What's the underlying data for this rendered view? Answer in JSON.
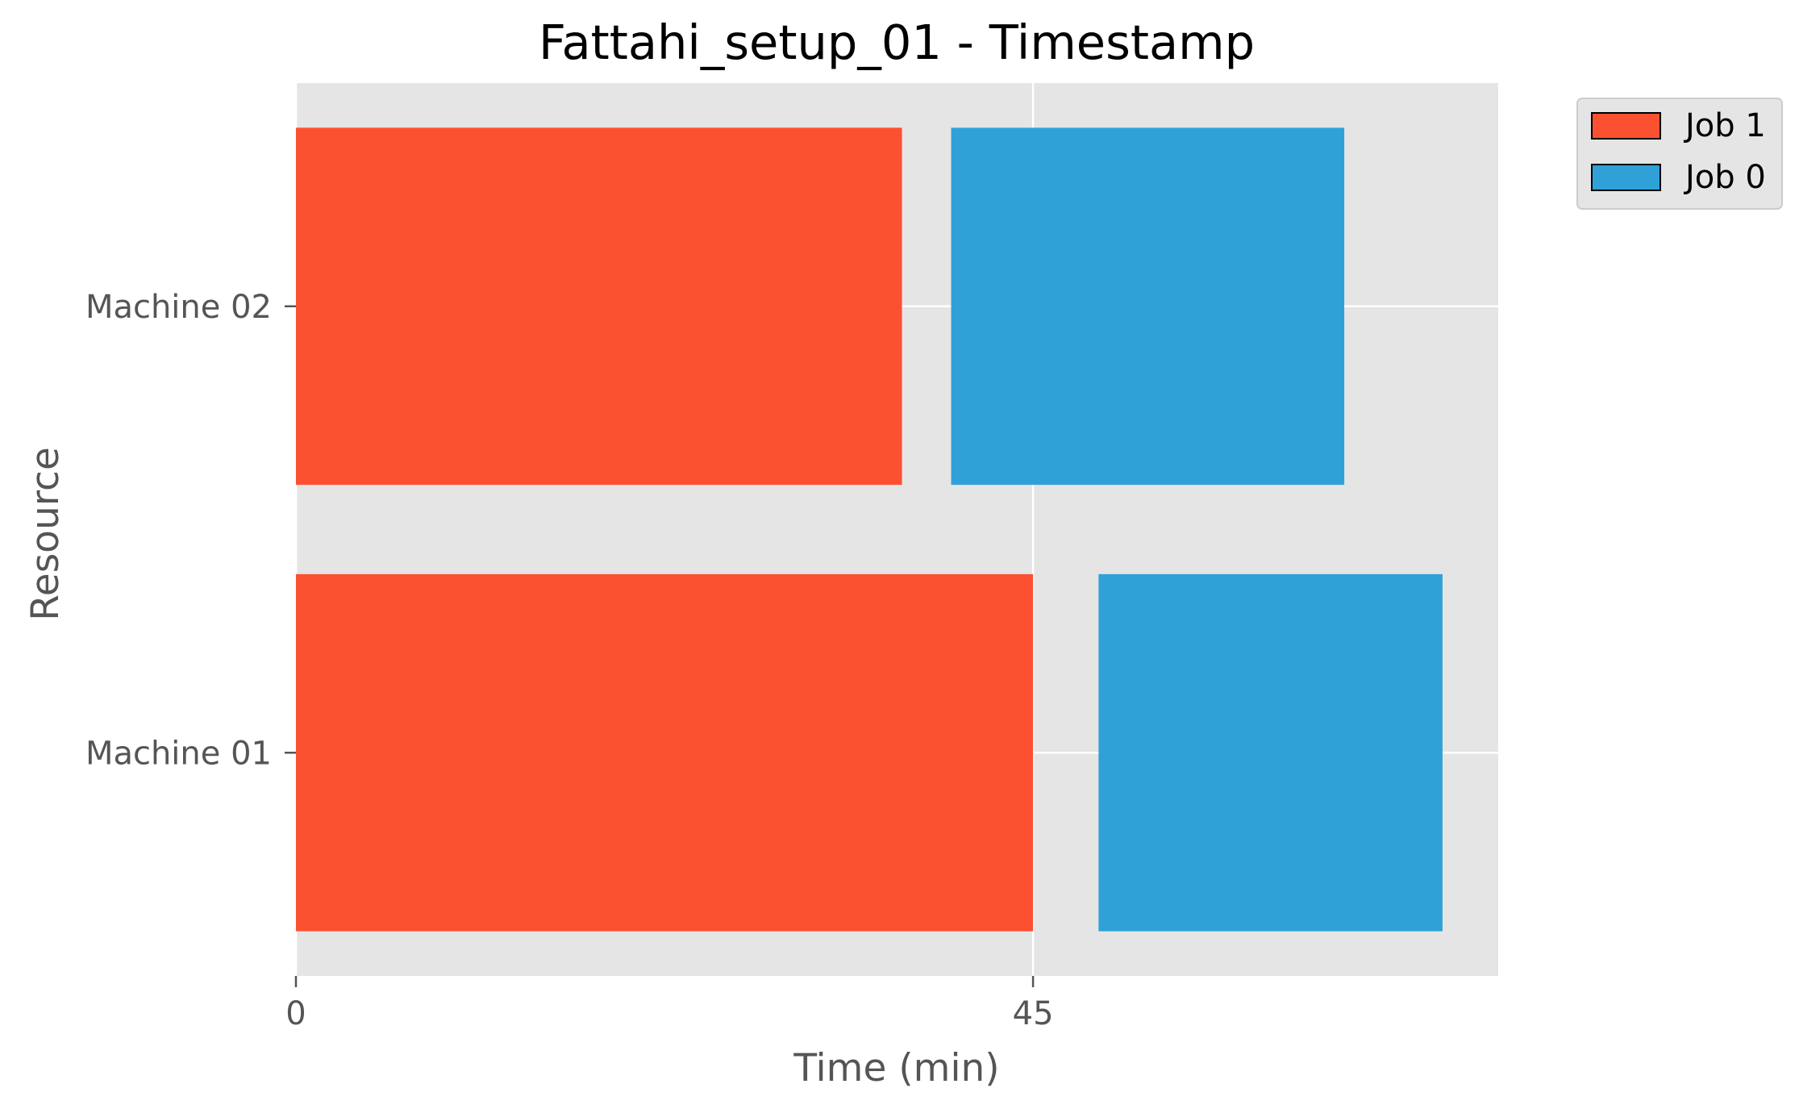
{
  "chart_data": {
    "type": "gantt",
    "title": "Fattahi_setup_01 - Timestamp",
    "xlabel": "Time (min)",
    "ylabel": "Resource",
    "xlim": [
      0,
      73.4
    ],
    "xticks": [
      0,
      45
    ],
    "grid": true,
    "legend_position": "outside-top-right",
    "categories": [
      "Machine 01",
      "Machine 02"
    ],
    "series": [
      {
        "name": "Job 1",
        "color": "#FC5130",
        "bars": [
          {
            "resource": "Machine 02",
            "start": 0,
            "end": 37
          },
          {
            "resource": "Machine 01",
            "start": 0,
            "end": 45
          }
        ]
      },
      {
        "name": "Job 0",
        "color": "#30A1D7",
        "bars": [
          {
            "resource": "Machine 02",
            "start": 40,
            "end": 64
          },
          {
            "resource": "Machine 01",
            "start": 49,
            "end": 70
          }
        ]
      }
    ],
    "legend": [
      "Job 1",
      "Job 0"
    ]
  }
}
